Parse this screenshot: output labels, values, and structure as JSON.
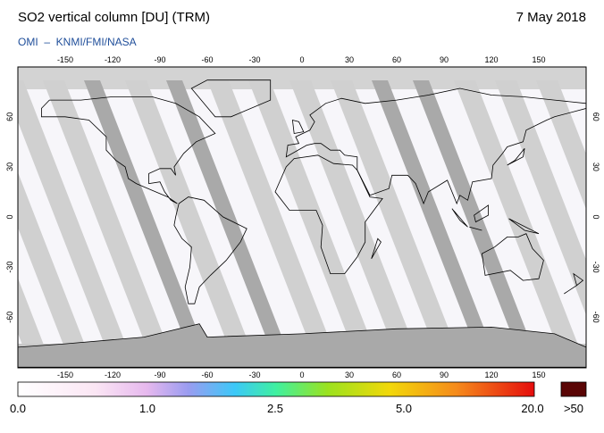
{
  "header": {
    "title": "SO2 vertical column [DU] (TRM)",
    "date": "7 May 2018",
    "source": "OMI  –  KNMI/FMI/NASA"
  },
  "map": {
    "lon_ticks": [
      "-150",
      "-120",
      "-90",
      "-60",
      "-30",
      "0",
      "30",
      "60",
      "90",
      "120",
      "150"
    ],
    "lat_ticks": [
      "60",
      "30",
      "0",
      "-30",
      "-60"
    ]
  },
  "colorbar": {
    "labels": [
      "0.0",
      "1.0",
      "2.5",
      "5.0",
      "20.0"
    ],
    "over_label": ">50"
  }
}
